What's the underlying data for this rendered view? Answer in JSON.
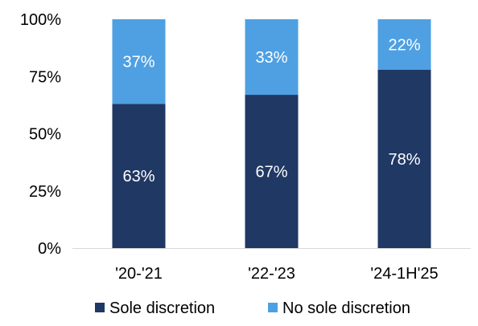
{
  "chart_data": {
    "type": "bar",
    "stacked": true,
    "percent_stacked": true,
    "categories": [
      "'20-'21",
      "'22-'23",
      "'24-1H'25"
    ],
    "series": [
      {
        "name": "Sole discretion",
        "values": [
          63,
          67,
          78
        ],
        "labels": [
          "63%",
          "67%",
          "78%"
        ],
        "color": "#203864"
      },
      {
        "name": "No sole discretion",
        "values": [
          37,
          33,
          22
        ],
        "labels": [
          "37%",
          "33%",
          "22%"
        ],
        "color": "#4ea0e2"
      }
    ],
    "y_ticks": [
      0,
      25,
      50,
      75,
      100
    ],
    "y_tick_labels": [
      "0%",
      "25%",
      "50%",
      "75%",
      "100%"
    ],
    "ylim": [
      0,
      100
    ],
    "grid": false,
    "legend_position": "bottom"
  }
}
